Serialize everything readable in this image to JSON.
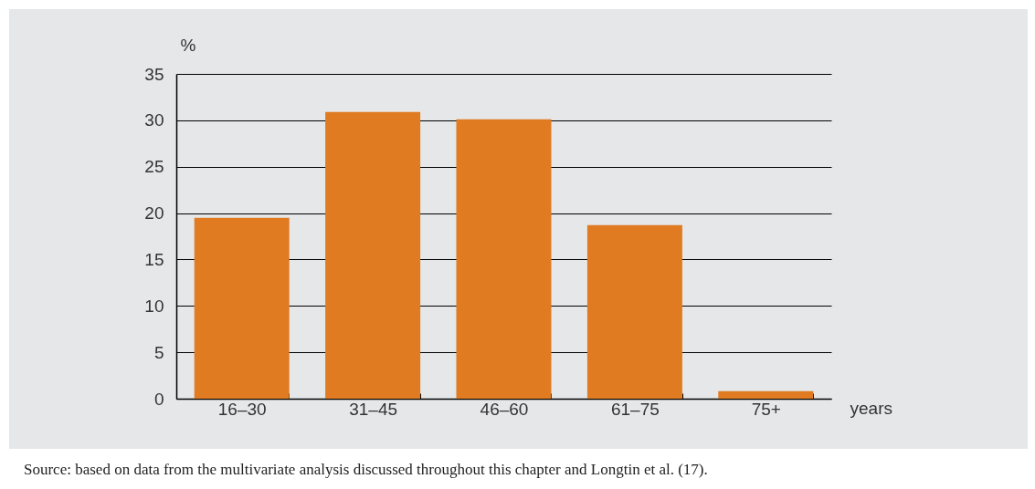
{
  "chart_data": {
    "type": "bar",
    "xlabel": "years",
    "ylabel": "%",
    "categories": [
      "16–30",
      "31–45",
      "46–60",
      "61–75",
      "75+"
    ],
    "values": [
      19.5,
      30.9,
      30.1,
      18.7,
      0.8
    ],
    "color": "#e07b22",
    "ylim": [
      0,
      35
    ],
    "yticks": [
      0,
      5,
      10,
      15,
      20,
      25,
      30,
      35
    ],
    "grid": "y",
    "annotations": [
      "Source: based on data from the multivariate analysis discussed throughout this chapter and Longtin et al. (17)."
    ]
  }
}
